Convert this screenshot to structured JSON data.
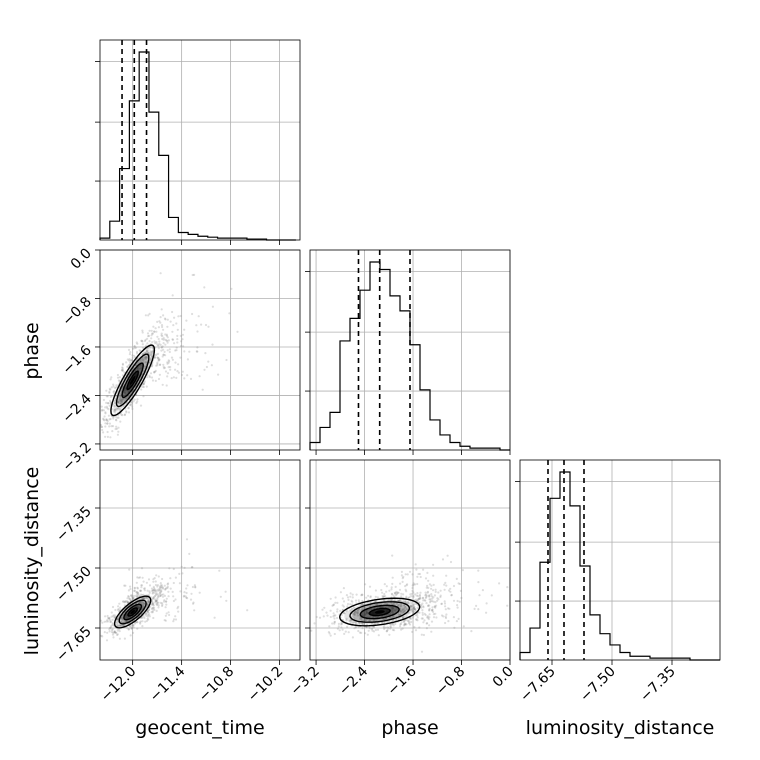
{
  "chart_data": {
    "type": "corner",
    "parameters": [
      "geocent_time",
      "phase",
      "luminosity_distance"
    ],
    "axis_labels": {
      "geocent_time": "geocent_time",
      "phase": "phase",
      "luminosity_distance": "luminosity_distance"
    },
    "ranges": {
      "geocent_time": [
        -12.4,
        -9.95
      ],
      "phase": [
        -3.3,
        0.0
      ],
      "luminosity_distance": [
        -7.73,
        -7.23
      ]
    },
    "ticks": {
      "geocent_time": [
        -12.0,
        -11.4,
        -10.8,
        -10.2
      ],
      "phase": [
        -3.2,
        -2.4,
        -1.6,
        -0.8,
        0.0
      ],
      "luminosity_distance": [
        -7.65,
        -7.5,
        -7.35
      ]
    },
    "tick_labels": {
      "geocent_time": [
        "−12.0",
        "−11.4",
        "−10.8",
        "−10.2"
      ],
      "phase": [
        "−3.2",
        "−2.4",
        "−1.6",
        "−0.8",
        "0.0"
      ],
      "luminosity_distance": [
        "−7.65",
        "−7.50",
        "−7.35"
      ]
    },
    "quantiles": {
      "geocent_time": [
        -12.13,
        -11.98,
        -11.83
      ],
      "phase": [
        -2.5,
        -2.15,
        -1.65
      ],
      "luminosity_distance": [
        -7.66,
        -7.62,
        -7.57
      ]
    },
    "histograms": {
      "geocent_time": {
        "bins": [
          -12.4,
          -12.28,
          -12.16,
          -12.04,
          -11.92,
          -11.8,
          -11.68,
          -11.56,
          -11.44,
          -11.32,
          -11.2,
          -11.08,
          -10.96,
          -10.84,
          -10.72,
          -10.6,
          -10.48,
          -10.36,
          -10.24,
          -10.12,
          -10.0
        ],
        "counts": [
          1,
          10,
          38,
          74,
          100,
          68,
          45,
          12,
          4,
          3,
          2,
          1.5,
          1,
          1,
          1,
          0.5,
          0.5,
          0,
          0,
          0
        ]
      },
      "phase": {
        "bins": [
          -3.3,
          -3.135,
          -2.97,
          -2.805,
          -2.64,
          -2.475,
          -2.31,
          -2.145,
          -1.98,
          -1.815,
          -1.65,
          -1.485,
          -1.32,
          -1.155,
          -0.99,
          -0.825,
          -0.66,
          -0.495,
          -0.33,
          -0.165,
          0.0
        ],
        "counts": [
          4,
          12,
          20,
          58,
          70,
          85,
          100,
          96,
          82,
          74,
          56,
          32,
          16,
          8,
          4,
          2,
          1,
          1,
          1,
          0
        ]
      },
      "luminosity_distance": {
        "bins": [
          -7.73,
          -7.705,
          -7.68,
          -7.655,
          -7.63,
          -7.605,
          -7.58,
          -7.555,
          -7.53,
          -7.505,
          -7.48,
          -7.455,
          -7.43,
          -7.405,
          -7.38,
          -7.355,
          -7.33,
          -7.305,
          -7.28,
          -7.255,
          -7.23
        ],
        "counts": [
          4,
          17,
          52,
          86,
          100,
          82,
          50,
          24,
          14,
          8,
          4,
          2,
          2,
          1,
          1,
          1,
          1,
          0,
          0,
          0
        ]
      }
    },
    "pairs": [
      {
        "x": "geocent_time",
        "y": "phase",
        "center": [
          -12.0,
          -2.15
        ],
        "spread": [
          0.12,
          0.38
        ],
        "tilt_deg": 60
      },
      {
        "x": "geocent_time",
        "y": "luminosity_distance",
        "center": [
          -12.0,
          -7.61
        ],
        "spread": [
          0.11,
          0.032
        ],
        "tilt_deg": 40
      },
      {
        "x": "phase",
        "y": "luminosity_distance",
        "center": [
          -2.15,
          -7.61
        ],
        "spread": [
          0.38,
          0.033
        ],
        "tilt_deg": 8
      }
    ],
    "grid": true,
    "scatter_color": "#888888",
    "contour_color": "#000000"
  }
}
